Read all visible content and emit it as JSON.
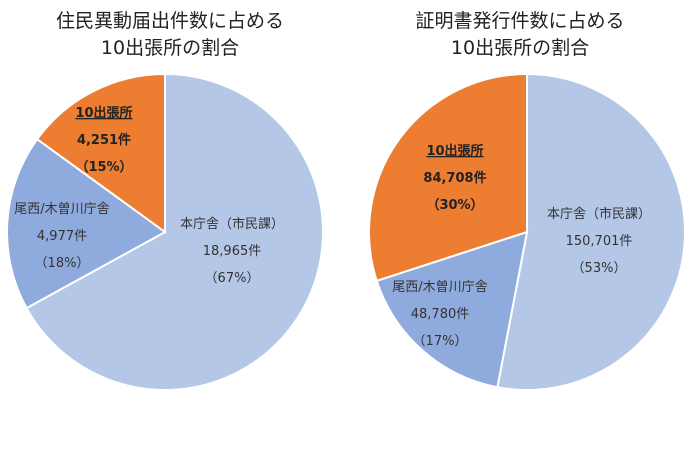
{
  "chart_data": [
    {
      "type": "pie",
      "title": [
        "住民異動届出件数に占める",
        "10出張所の割合"
      ],
      "slices": [
        {
          "name": "本庁舎（市民課）",
          "count": "18,965件",
          "percent": "（67%）",
          "value": 67,
          "color": "#b4c7e7",
          "bold": false
        },
        {
          "name": "尾西/木曽川庁舎",
          "count": "4,977件",
          "percent": "（18%）",
          "value": 18,
          "color": "#8faadc",
          "bold": false
        },
        {
          "name": "10出張所",
          "count": "4,251件",
          "percent": "（15%）",
          "value": 15,
          "color": "#ed7d31",
          "bold": true
        }
      ]
    },
    {
      "type": "pie",
      "title": [
        "証明書発行件数に占める",
        "10出張所の割合"
      ],
      "slices": [
        {
          "name": "本庁舎（市民課）",
          "count": "150,701件",
          "percent": "（53%）",
          "value": 53,
          "color": "#b4c7e7",
          "bold": false
        },
        {
          "name": "尾西/木曽川庁舎",
          "count": "48,780件",
          "percent": "（17%）",
          "value": 17,
          "color": "#8faadc",
          "bold": false
        },
        {
          "name": "10出張所",
          "count": "84,708件",
          "percent": "（30%）",
          "value": 30,
          "color": "#ed7d31",
          "bold": true
        }
      ]
    }
  ]
}
